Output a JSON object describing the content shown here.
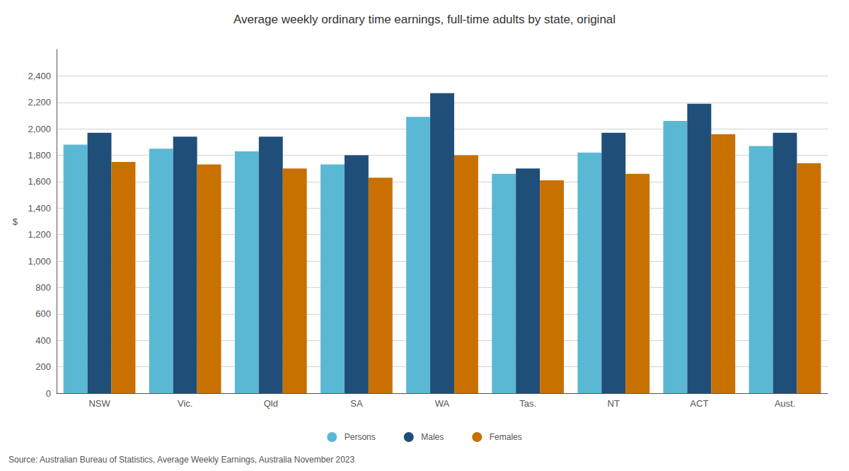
{
  "chart_data": {
    "type": "bar",
    "title": "Average weekly ordinary time earnings, full-time adults by state, original",
    "ylabel": "$",
    "annotations": [
      "Source: Australian Bureau of Statistics, Average Weekly Earnings, Australia November 2023"
    ],
    "categories": [
      "NSW",
      "Vic.",
      "Qld",
      "SA",
      "WA",
      "Tas.",
      "NT",
      "ACT",
      "Aust."
    ],
    "series": [
      {
        "name": "Persons",
        "color": "#5BB8D4",
        "values": [
          1880,
          1850,
          1830,
          1730,
          2090,
          1660,
          1820,
          2060,
          1870
        ]
      },
      {
        "name": "Males",
        "color": "#1F4E79",
        "values": [
          1970,
          1940,
          1940,
          1800,
          2270,
          1700,
          1970,
          2190,
          1970
        ]
      },
      {
        "name": "Females",
        "color": "#C87000",
        "values": [
          1750,
          1730,
          1700,
          1630,
          1800,
          1610,
          1660,
          1960,
          1740
        ]
      }
    ],
    "ylim": [
      0,
      2600
    ],
    "yticks": [
      0,
      200,
      400,
      600,
      800,
      {
        "value": 1000,
        "label": "1,000"
      },
      {
        "value": 1200,
        "label": "1,200"
      },
      {
        "value": 1400,
        "label": "1,400"
      },
      {
        "value": 1600,
        "label": "1,600"
      },
      {
        "value": 1800,
        "label": "1,800"
      },
      {
        "value": 2000,
        "label": "2,000"
      },
      {
        "value": 2200,
        "label": "2,200"
      },
      {
        "value": 2400,
        "label": "2,400"
      }
    ],
    "grid": true,
    "legend": "bottom"
  }
}
